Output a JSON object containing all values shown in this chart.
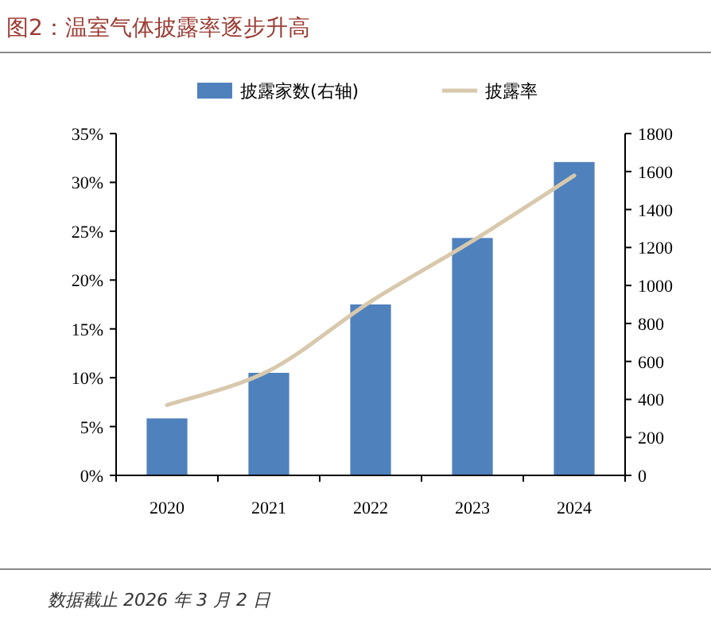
{
  "chart_data": {
    "type": "bar",
    "title": "图2：温室气体披露率逐步升高",
    "categories": [
      "2020",
      "2021",
      "2022",
      "2023",
      "2024"
    ],
    "series": [
      {
        "name": "披露家数(右轴)",
        "axis": "y2",
        "color": "#4f81bd",
        "values": [
          300,
          540,
          900,
          1250,
          1650
        ]
      },
      {
        "name": "披露率",
        "type": "line",
        "color": "#d8c8ac",
        "values": [
          7.2,
          10.7,
          17.8,
          24.0,
          30.7
        ]
      }
    ],
    "ylim": [
      0,
      35
    ],
    "yticks": [
      {
        "value": 0,
        "label": "0%"
      },
      {
        "value": 5,
        "label": "5%"
      },
      {
        "value": 10,
        "label": "10%"
      },
      {
        "value": 15,
        "label": "15%"
      },
      {
        "value": 20,
        "label": "20%"
      },
      {
        "value": 25,
        "label": "25%"
      },
      {
        "value": 30,
        "label": "30%"
      },
      {
        "value": 35,
        "label": "35%"
      }
    ],
    "y2lim": [
      0,
      1800
    ],
    "y2ticks": [
      0,
      200,
      400,
      600,
      800,
      1000,
      1200,
      1400,
      1600,
      1800
    ],
    "legend": "top",
    "annotations": [
      "数据截止 2026 年 3 月 2 日"
    ]
  }
}
